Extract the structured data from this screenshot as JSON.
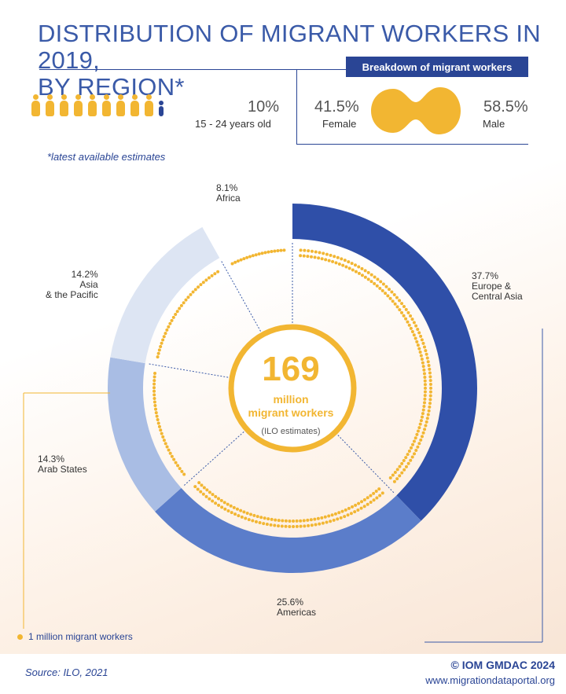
{
  "title": {
    "line1": "DISTRIBUTION OF MIGRANT WORKERS IN 2019,",
    "line2": "BY REGION*"
  },
  "age": {
    "percent": "10%",
    "label": "15 - 24 years old",
    "share": 0.1
  },
  "breakdown": {
    "banner": "Breakdown of migrant workers",
    "female_pct": "41.5%",
    "female_label": "Female",
    "male_pct": "58.5%",
    "male_label": "Male"
  },
  "footnote": "*latest available estimates",
  "center": {
    "number": "169",
    "unit_line1": "million",
    "unit_line2": "migrant workers",
    "note": "(ILO estimates)"
  },
  "legend": "1 million migrant workers",
  "source_label": "Source:",
  "source_value": "ILO, 2021",
  "copyright": "© IOM GMDAC 2024",
  "website": "www.migrationdataportal.org",
  "colors": {
    "accent": "#f2b632",
    "brand": "#2a4595"
  },
  "chart_data": {
    "type": "pie",
    "title": "DISTRIBUTION OF MIGRANT WORKERS IN 2019, BY REGION*",
    "series": [
      {
        "pct_label": "37.7%",
        "label1": "Europe &",
        "label2": "Central Asia",
        "value": 37.7,
        "color": "#2f4fa8"
      },
      {
        "pct_label": "25.6%",
        "label1": "Americas",
        "label2": "",
        "value": 25.6,
        "color": "#5b7dca"
      },
      {
        "pct_label": "14.3%",
        "label1": "Arab States",
        "label2": "",
        "value": 14.3,
        "color": "#a9bde4"
      },
      {
        "pct_label": "14.2%",
        "label1": "Asia",
        "label2": "& the Pacific",
        "value": 14.2,
        "color": "#dde5f3"
      },
      {
        "pct_label": "8.1%",
        "label1": "Africa",
        "label2": "",
        "value": 8.1,
        "color": "#ffffff"
      }
    ],
    "total": 169
  }
}
